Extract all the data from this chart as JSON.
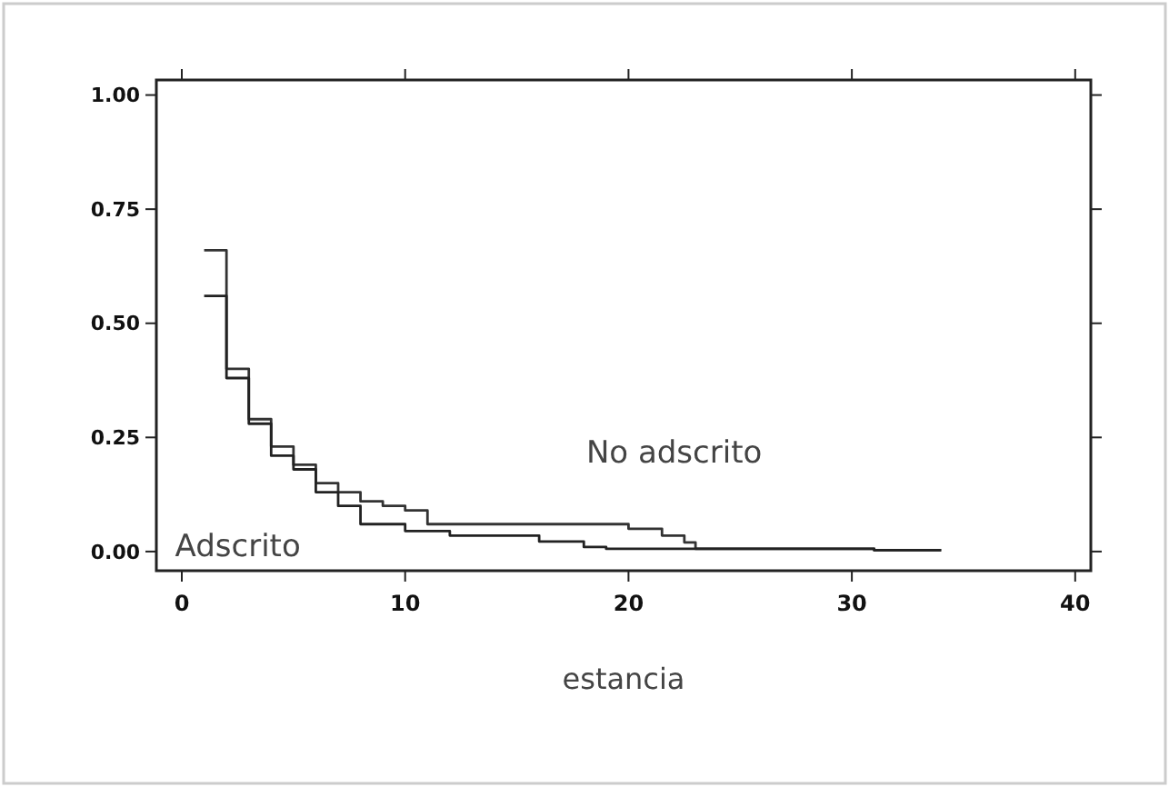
{
  "chart_data": {
    "type": "step",
    "xlabel": "estancia",
    "xlim": [
      -1.14,
      40.7
    ],
    "ylim": [
      -0.042,
      1.033
    ],
    "xticks": [
      0,
      10,
      20,
      30,
      40
    ],
    "yticks": [
      {
        "value": 0,
        "label": "0.00"
      },
      {
        "value": 0.25,
        "label": "0.25"
      },
      {
        "value": 0.5,
        "label": "0.50"
      },
      {
        "value": 0.75,
        "label": "0.75"
      },
      {
        "value": 1,
        "label": "1.00"
      }
    ],
    "grid": false,
    "series": [
      {
        "name": "No adscrito",
        "color": "#333333",
        "x": [
          1,
          2,
          3,
          4,
          5,
          6,
          7,
          8,
          9,
          10,
          11,
          20,
          21.5,
          22.5,
          23,
          31,
          34
        ],
        "values": [
          0.66,
          0.4,
          0.29,
          0.23,
          0.19,
          0.15,
          0.13,
          0.11,
          0.1,
          0.09,
          0.06,
          0.05,
          0.035,
          0.02,
          0.006,
          0.003,
          0.003
        ]
      },
      {
        "name": "Adscrito",
        "color": "#222222",
        "x": [
          1,
          2,
          3,
          4,
          5,
          6,
          7,
          8,
          10,
          12,
          16,
          18,
          19,
          31,
          34
        ],
        "values": [
          0.56,
          0.38,
          0.28,
          0.21,
          0.18,
          0.13,
          0.1,
          0.06,
          0.045,
          0.035,
          0.022,
          0.01,
          0.006,
          0.003,
          0.003
        ]
      }
    ]
  }
}
